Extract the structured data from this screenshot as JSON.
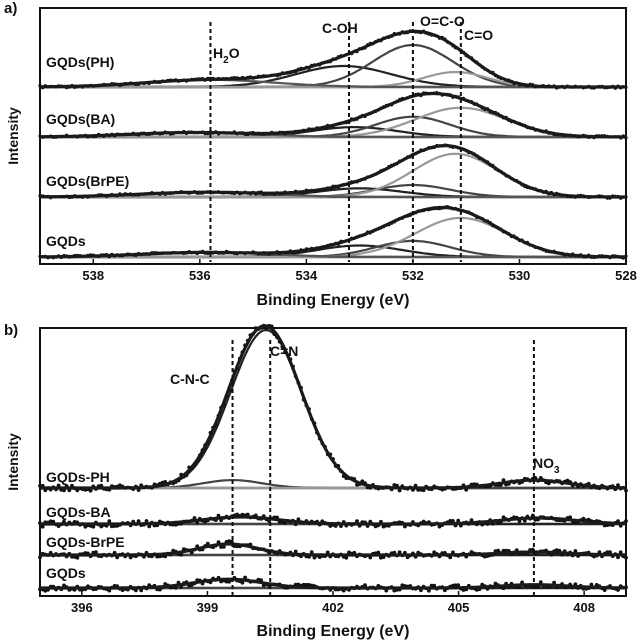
{
  "chart_data": [
    {
      "type": "line",
      "panel": "a)",
      "xlabel": "Binding Energy (eV)",
      "ylabel": "Intensity",
      "xlim": [
        539,
        528
      ],
      "x_reversed": true,
      "x_ticks": [
        "538",
        "536",
        "534",
        "532",
        "530",
        "528"
      ],
      "grid": false,
      "annotations": [
        {
          "label": "H2O",
          "main": "H",
          "sub": "2",
          "tail": "O",
          "x": 535.8
        },
        {
          "label": "C-OH",
          "x": 533.2
        },
        {
          "label": "O=C-O",
          "x": 532.0
        },
        {
          "label": "C=O",
          "x": 531.1
        }
      ],
      "series": [
        {
          "name": "GQDs(PH)",
          "peaks": [
            {
              "center": 533.3,
              "height": 0.35,
              "width": 0.9
            },
            {
              "center": 532.0,
              "height": 0.7,
              "width": 0.75
            },
            {
              "center": 531.2,
              "height": 0.25,
              "width": 0.6
            },
            {
              "center": 535.8,
              "height": 0.12,
              "width": 1.2
            }
          ]
        },
        {
          "name": "GQDs(BA)",
          "peaks": [
            {
              "center": 533.1,
              "height": 0.22,
              "width": 0.8
            },
            {
              "center": 532.0,
              "height": 0.45,
              "width": 0.7
            },
            {
              "center": 531.1,
              "height": 0.65,
              "width": 0.85
            },
            {
              "center": 536.1,
              "height": 0.1,
              "width": 1.2
            }
          ]
        },
        {
          "name": "GQDs(BrPE)",
          "peaks": [
            {
              "center": 533.0,
              "height": 0.18,
              "width": 0.8
            },
            {
              "center": 532.0,
              "height": 0.25,
              "width": 0.7
            },
            {
              "center": 531.2,
              "height": 0.9,
              "width": 0.8
            },
            {
              "center": 535.9,
              "height": 0.1,
              "width": 1.2
            }
          ]
        },
        {
          "name": "GQDs",
          "peaks": [
            {
              "center": 533.0,
              "height": 0.25,
              "width": 0.8
            },
            {
              "center": 532.0,
              "height": 0.35,
              "width": 0.7
            },
            {
              "center": 531.1,
              "height": 0.85,
              "width": 0.85
            },
            {
              "center": 535.9,
              "height": 0.1,
              "width": 1.2
            }
          ]
        }
      ]
    },
    {
      "type": "line",
      "panel": "b)",
      "xlabel": "Binding Energy (eV)",
      "ylabel": "Intensity",
      "xlim": [
        395,
        409
      ],
      "x_reversed": false,
      "x_ticks": [
        "396",
        "399",
        "402",
        "405",
        "408"
      ],
      "grid": false,
      "annotations": [
        {
          "label": "C-N-C",
          "x": 399.6
        },
        {
          "label": "C=N",
          "x": 400.5
        },
        {
          "label": "NO3",
          "main": "NO",
          "sub": "3",
          "tail": "",
          "x": 406.8
        }
      ],
      "series": [
        {
          "name": "GQDs-PH",
          "peaks": [
            {
              "center": 400.4,
              "height": 1.0,
              "width": 0.85
            },
            {
              "center": 399.6,
              "height": 0.05,
              "width": 0.7
            },
            {
              "center": 406.8,
              "height": 0.05,
              "width": 0.8
            }
          ]
        },
        {
          "name": "GQDs-BA",
          "peaks": [
            {
              "center": 399.8,
              "height": 0.35,
              "width": 0.9
            },
            {
              "center": 406.9,
              "height": 0.3,
              "width": 0.9
            }
          ]
        },
        {
          "name": "GQDs-BrPE",
          "peaks": [
            {
              "center": 399.5,
              "height": 0.55,
              "width": 0.7
            },
            {
              "center": 406.8,
              "height": 0.15,
              "width": 0.8
            }
          ]
        },
        {
          "name": "GQDs",
          "peaks": [
            {
              "center": 399.5,
              "height": 0.4,
              "width": 0.8
            },
            {
              "center": 406.8,
              "height": 0.15,
              "width": 0.8
            }
          ]
        }
      ]
    }
  ]
}
